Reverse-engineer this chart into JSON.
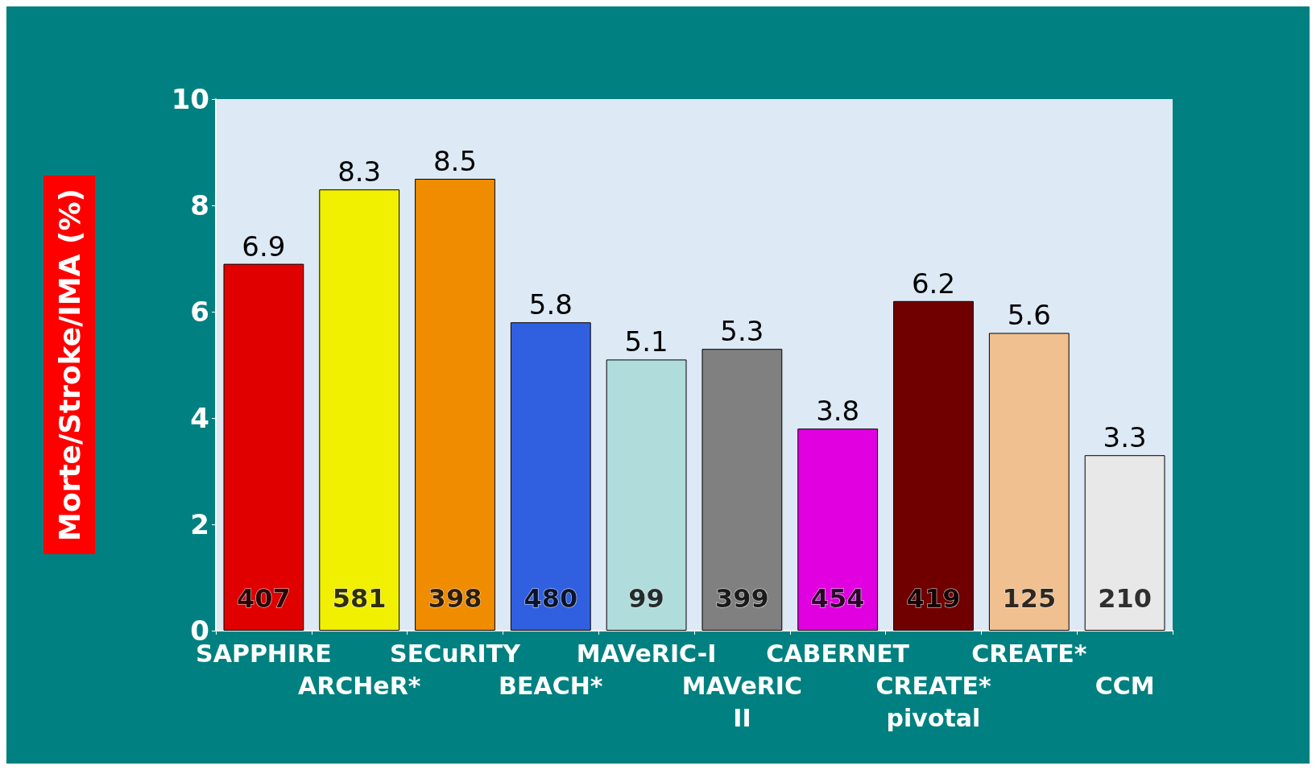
{
  "chart_data": {
    "type": "bar",
    "ylabel": "Morte/Stroke/IMA (%)",
    "categories": [
      "SAPPHIRE",
      "ARCHeR*",
      "SECuRITY",
      "BEACH*",
      "MAVeRIC-I",
      "MAVeRIC\nII",
      "CABERNET",
      "CREATE*\npivotal",
      "CREATE*",
      "CCM"
    ],
    "values": [
      6.9,
      8.3,
      8.5,
      5.8,
      5.1,
      5.3,
      3.8,
      6.2,
      5.6,
      3.3
    ],
    "colors": [
      "#e00000",
      "#f0f000",
      "#f08c00",
      "#3060e0",
      "#b0dcdc",
      "#808080",
      "#e000e0",
      "#700000",
      "#f0c090",
      "#e8e8e8"
    ],
    "ylim": [
      0,
      10
    ],
    "yticks": [
      0,
      2,
      4,
      6,
      8,
      10
    ],
    "data_labels": true,
    "grid": false,
    "annotations": [
      "407",
      "581",
      "398",
      "480",
      "99",
      "399",
      "454",
      "419",
      "125",
      "210"
    ]
  }
}
